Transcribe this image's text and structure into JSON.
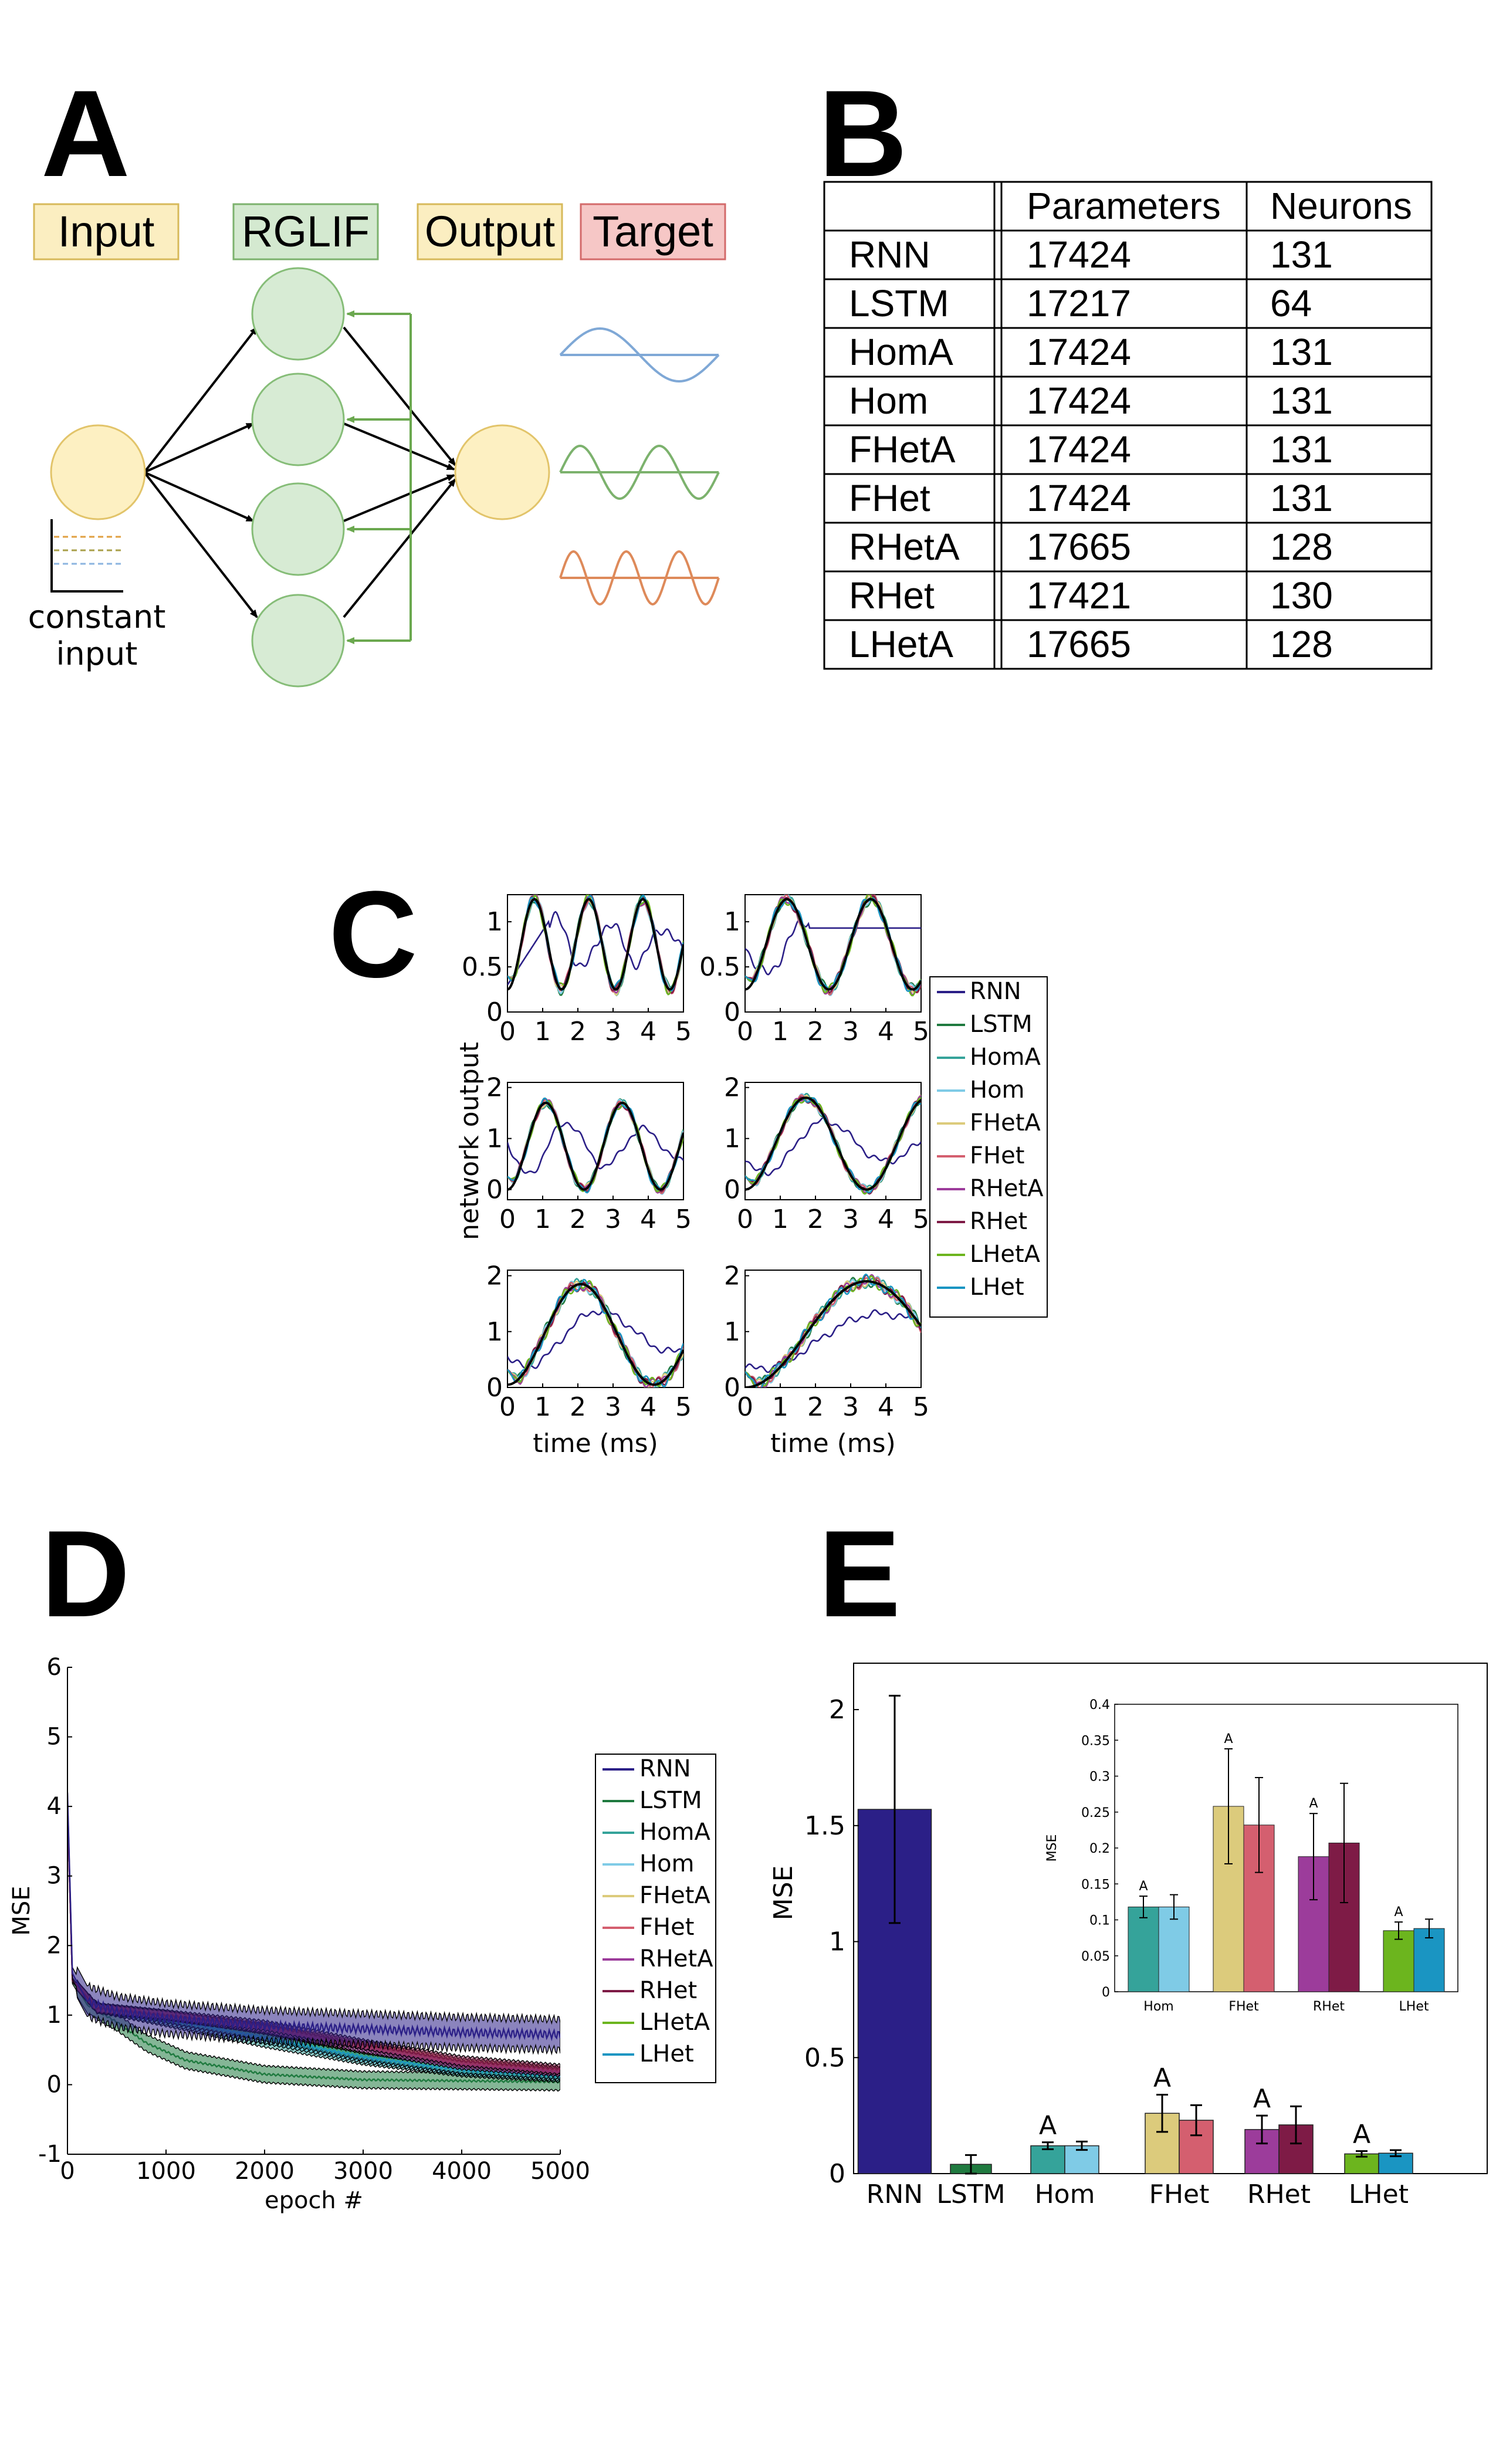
{
  "panels": {
    "a": {
      "letter": "A",
      "labels": {
        "input": "Input",
        "rglif": "RGLIF",
        "output": "Output",
        "target": "Target"
      },
      "constant_input": [
        "constant",
        "input"
      ],
      "colors": {
        "box_yellow": "#fbeec1",
        "box_green": "#d4e9d0",
        "box_red": "#f6c7c6",
        "node_yellow": "#fdf0c2",
        "node_green": "#d7ebd4",
        "wave_blue": "#7fa8d6",
        "wave_green": "#7cb26d",
        "wave_orange": "#de8a5a",
        "feedback": "#6ba84f"
      }
    },
    "b": {
      "letter": "B",
      "headers": [
        "",
        "Parameters",
        "Neurons"
      ],
      "rows": [
        [
          "RNN",
          "17424",
          "131"
        ],
        [
          "LSTM",
          "17217",
          "64"
        ],
        [
          "HomA",
          "17424",
          "131"
        ],
        [
          "Hom",
          "17424",
          "131"
        ],
        [
          "FHetA",
          "17424",
          "131"
        ],
        [
          "FHet",
          "17424",
          "131"
        ],
        [
          "RHetA",
          "17665",
          "128"
        ],
        [
          "RHet",
          "17421",
          "130"
        ],
        [
          "LHetA",
          "17665",
          "128"
        ]
      ]
    },
    "c": {
      "letter": "C"
    },
    "d": {
      "letter": "D"
    },
    "e": {
      "letter": "E"
    }
  },
  "series_colors": {
    "RNN": "#2b1f87",
    "LSTM": "#1f7a3f",
    "HomA": "#35a39a",
    "Hom": "#7fcbe6",
    "FHetA": "#dccb7c",
    "FHet": "#d45f6f",
    "RHetA": "#9c3c9b",
    "RHet": "#7e1b46",
    "LHetA": "#6cb51e",
    "LHet": "#1a95c2"
  },
  "chart_data": [
    {
      "id": "C",
      "type": "line",
      "xlabel": "time (ms)",
      "ylabel": "network output",
      "legend": [
        "RNN",
        "LSTM",
        "HomA",
        "Hom",
        "FHetA",
        "FHet",
        "RHetA",
        "RHet",
        "LHetA",
        "LHet"
      ],
      "legend_position": "right",
      "xlim": [
        0,
        5
      ],
      "xticks": [
        0,
        1,
        2,
        3,
        4,
        5
      ],
      "subplots": [
        {
          "row": 0,
          "col": 0,
          "ylim": [
            0,
            1.3
          ],
          "yticks": [
            0,
            0.5,
            1
          ],
          "target_periods": 6.5,
          "target_amp": 0.5,
          "target_mean": 0.75,
          "target_phase": 0.3
        },
        {
          "row": 0,
          "col": 1,
          "ylim": [
            0,
            1.3
          ],
          "yticks": [
            0,
            0.5,
            1
          ],
          "target_periods": 4.2,
          "target_amp": 0.5,
          "target_mean": 0.75,
          "target_phase": 0.3
        },
        {
          "row": 1,
          "col": 0,
          "ylim": [
            -0.2,
            2.1
          ],
          "yticks": [
            0,
            1,
            2
          ],
          "target_periods": 4.6,
          "target_amp": 0.85,
          "target_mean": 0.85,
          "target_phase": 0.2
        },
        {
          "row": 1,
          "col": 1,
          "ylim": [
            -0.2,
            2.1
          ],
          "yticks": [
            0,
            1,
            2
          ],
          "target_periods": 2.9,
          "target_amp": 0.9,
          "target_mean": 0.9,
          "target_phase": 0.2
        },
        {
          "row": 2,
          "col": 0,
          "ylim": [
            0,
            2.1
          ],
          "yticks": [
            0,
            1,
            2
          ],
          "target_periods": 2.4,
          "target_amp": 0.9,
          "target_mean": 0.95,
          "target_phase": 0.15
        },
        {
          "row": 2,
          "col": 1,
          "ylim": [
            0,
            2.1
          ],
          "yticks": [
            0,
            1,
            2
          ],
          "target_periods": 1.45,
          "target_amp": 0.95,
          "target_mean": 0.95,
          "target_phase": 0.1
        }
      ]
    },
    {
      "id": "D",
      "type": "line",
      "xlabel": "epoch #",
      "ylabel": "MSE",
      "xlim": [
        0,
        5000
      ],
      "ylim": [
        -1,
        6
      ],
      "xticks": [
        0,
        1000,
        2000,
        3000,
        4000,
        5000
      ],
      "yticks": [
        -1,
        0,
        1,
        2,
        3,
        4,
        5,
        6
      ],
      "legend": [
        "RNN",
        "LSTM",
        "HomA",
        "Hom",
        "FHetA",
        "FHet",
        "RHetA",
        "RHet",
        "LHetA",
        "LHet"
      ],
      "legend_position": "right",
      "series": [
        {
          "name": "RNN",
          "points": [
            [
              0,
              4.2
            ],
            [
              50,
              1.6
            ],
            [
              200,
              1.2
            ],
            [
              500,
              1.05
            ],
            [
              1000,
              0.95
            ],
            [
              2000,
              0.85
            ],
            [
              3000,
              0.8
            ],
            [
              4000,
              0.75
            ],
            [
              5000,
              0.72
            ]
          ],
          "band": 0.22
        },
        {
          "name": "LSTM",
          "points": [
            [
              0,
              4.0
            ],
            [
              50,
              1.5
            ],
            [
              200,
              1.15
            ],
            [
              500,
              0.9
            ],
            [
              800,
              0.6
            ],
            [
              1200,
              0.35
            ],
            [
              2000,
              0.15
            ],
            [
              3000,
              0.07
            ],
            [
              5000,
              0.04
            ]
          ],
          "band": 0.12
        },
        {
          "name": "HomA",
          "points": [
            [
              0,
              4.0
            ],
            [
              50,
              1.5
            ],
            [
              300,
              1.1
            ],
            [
              1000,
              0.9
            ],
            [
              2000,
              0.6
            ],
            [
              3000,
              0.35
            ],
            [
              4000,
              0.18
            ],
            [
              5000,
              0.1
            ]
          ],
          "band": 0.06
        },
        {
          "name": "Hom",
          "points": [
            [
              0,
              4.0
            ],
            [
              50,
              1.5
            ],
            [
              300,
              1.1
            ],
            [
              1000,
              0.92
            ],
            [
              2000,
              0.65
            ],
            [
              3000,
              0.38
            ],
            [
              4000,
              0.2
            ],
            [
              5000,
              0.12
            ]
          ],
          "band": 0.06
        },
        {
          "name": "FHetA",
          "points": [
            [
              0,
              4.0
            ],
            [
              50,
              1.5
            ],
            [
              300,
              1.1
            ],
            [
              1000,
              1.0
            ],
            [
              2000,
              0.8
            ],
            [
              3000,
              0.55
            ],
            [
              4000,
              0.3
            ],
            [
              5000,
              0.2
            ]
          ],
          "band": 0.06
        },
        {
          "name": "FHet",
          "points": [
            [
              0,
              4.0
            ],
            [
              50,
              1.5
            ],
            [
              300,
              1.1
            ],
            [
              1000,
              1.0
            ],
            [
              2000,
              0.82
            ],
            [
              3000,
              0.57
            ],
            [
              4000,
              0.32
            ],
            [
              5000,
              0.2
            ]
          ],
          "band": 0.06
        },
        {
          "name": "RHetA",
          "points": [
            [
              0,
              4.0
            ],
            [
              50,
              1.5
            ],
            [
              300,
              1.1
            ],
            [
              1000,
              1.0
            ],
            [
              2000,
              0.8
            ],
            [
              3000,
              0.52
            ],
            [
              4000,
              0.28
            ],
            [
              5000,
              0.18
            ]
          ],
          "band": 0.06
        },
        {
          "name": "RHet",
          "points": [
            [
              0,
              4.0
            ],
            [
              50,
              1.5
            ],
            [
              300,
              1.1
            ],
            [
              1000,
              1.0
            ],
            [
              2000,
              0.85
            ],
            [
              3000,
              0.58
            ],
            [
              4000,
              0.34
            ],
            [
              5000,
              0.22
            ]
          ],
          "band": 0.07
        },
        {
          "name": "LHetA",
          "points": [
            [
              0,
              4.0
            ],
            [
              50,
              1.5
            ],
            [
              300,
              1.1
            ],
            [
              1000,
              0.95
            ],
            [
              2000,
              0.7
            ],
            [
              3000,
              0.42
            ],
            [
              4000,
              0.22
            ],
            [
              5000,
              0.14
            ]
          ],
          "band": 0.05
        },
        {
          "name": "LHet",
          "points": [
            [
              0,
              4.0
            ],
            [
              50,
              1.5
            ],
            [
              300,
              1.1
            ],
            [
              1000,
              0.94
            ],
            [
              2000,
              0.68
            ],
            [
              3000,
              0.4
            ],
            [
              4000,
              0.21
            ],
            [
              5000,
              0.13
            ]
          ],
          "band": 0.05
        }
      ]
    },
    {
      "id": "E",
      "type": "bar",
      "ylabel": "MSE",
      "ylim": [
        0,
        2.2
      ],
      "yticks": [
        0,
        0.5,
        1,
        1.5,
        2
      ],
      "categories": [
        "RNN",
        "LSTM",
        "Hom",
        "FHet",
        "RHet",
        "LHet"
      ],
      "bars": [
        {
          "series": "RNN",
          "group": "RNN",
          "value": 1.57,
          "err": 0.49
        },
        {
          "series": "LSTM",
          "group": "LSTM",
          "value": 0.04,
          "err": 0.04
        },
        {
          "series": "HomA",
          "group": "Hom",
          "value": 0.12,
          "err": 0.015,
          "sig": "A"
        },
        {
          "series": "Hom",
          "group": "Hom",
          "value": 0.12,
          "err": 0.018
        },
        {
          "series": "FHetA",
          "group": "FHet",
          "value": 0.26,
          "err": 0.08,
          "sig": "A"
        },
        {
          "series": "FHet",
          "group": "FHet",
          "value": 0.23,
          "err": 0.065
        },
        {
          "series": "RHetA",
          "group": "RHet",
          "value": 0.19,
          "err": 0.06,
          "sig": "A"
        },
        {
          "series": "RHet",
          "group": "RHet",
          "value": 0.21,
          "err": 0.08
        },
        {
          "series": "LHetA",
          "group": "LHet",
          "value": 0.085,
          "err": 0.012,
          "sig": "A"
        },
        {
          "series": "LHet",
          "group": "LHet",
          "value": 0.088,
          "err": 0.013
        }
      ],
      "inset": {
        "ylabel": "MSE",
        "ylim": [
          0,
          0.4
        ],
        "yticks": [
          0,
          0.05,
          0.1,
          0.15,
          0.2,
          0.25,
          0.3,
          0.35,
          0.4
        ],
        "categories": [
          "Hom",
          "FHet",
          "RHet",
          "LHet"
        ],
        "bars": [
          {
            "series": "HomA",
            "group": "Hom",
            "value": 0.118,
            "err": 0.015,
            "sig": "A"
          },
          {
            "series": "Hom",
            "group": "Hom",
            "value": 0.118,
            "err": 0.017
          },
          {
            "series": "FHetA",
            "group": "FHet",
            "value": 0.258,
            "err": 0.08,
            "sig": "A"
          },
          {
            "series": "FHet",
            "group": "FHet",
            "value": 0.232,
            "err": 0.066
          },
          {
            "series": "RHetA",
            "group": "RHet",
            "value": 0.188,
            "err": 0.06,
            "sig": "A"
          },
          {
            "series": "RHet",
            "group": "RHet",
            "value": 0.207,
            "err": 0.083
          },
          {
            "series": "LHetA",
            "group": "LHet",
            "value": 0.085,
            "err": 0.012,
            "sig": "A"
          },
          {
            "series": "LHet",
            "group": "LHet",
            "value": 0.088,
            "err": 0.013
          }
        ]
      }
    }
  ]
}
